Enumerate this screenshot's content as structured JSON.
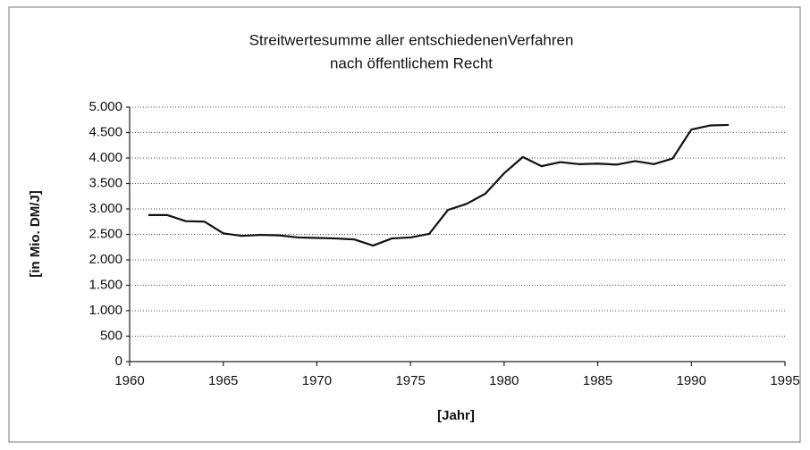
{
  "chart_data": {
    "type": "line",
    "title": [
      "Streitwertesumme aller entschiedenenVerfahren",
      "nach öffentlichem Recht"
    ],
    "xlabel": "[Jahr]",
    "ylabel": "[in Mio. DM/J]",
    "x": [
      1961,
      1962,
      1963,
      1964,
      1965,
      1966,
      1967,
      1968,
      1969,
      1970,
      1971,
      1972,
      1973,
      1974,
      1975,
      1976,
      1977,
      1978,
      1979,
      1980,
      1981,
      1982,
      1983,
      1984,
      1985,
      1986,
      1987,
      1988,
      1989,
      1990,
      1991,
      1992
    ],
    "series": [
      {
        "color": "#111111",
        "values": [
          2880,
          2880,
          2760,
          2750,
          2520,
          2470,
          2490,
          2480,
          2440,
          2430,
          2420,
          2400,
          2280,
          2420,
          2440,
          2510,
          2980,
          3100,
          3300,
          3700,
          4020,
          3840,
          3920,
          3880,
          3890,
          3870,
          3940,
          3880,
          3990,
          4560,
          4640,
          4650
        ]
      }
    ],
    "xlim": [
      1960,
      1995
    ],
    "xticks": [
      1960,
      1965,
      1970,
      1975,
      1980,
      1985,
      1990,
      1995
    ],
    "ylim": [
      0,
      5000
    ],
    "yticks": [
      0,
      500,
      {
        "value": 1000,
        "label": "1.000"
      },
      {
        "value": 1500,
        "label": "1.500"
      },
      {
        "value": 2000,
        "label": "2.000"
      },
      {
        "value": 2500,
        "label": "2.500"
      },
      {
        "value": 3000,
        "label": "3.000"
      },
      {
        "value": 3500,
        "label": "3.500"
      },
      {
        "value": 4000,
        "label": "4.000"
      },
      {
        "value": 4500,
        "label": "4.500"
      },
      {
        "value": 5000,
        "label": "5.000"
      }
    ],
    "grid": true
  }
}
